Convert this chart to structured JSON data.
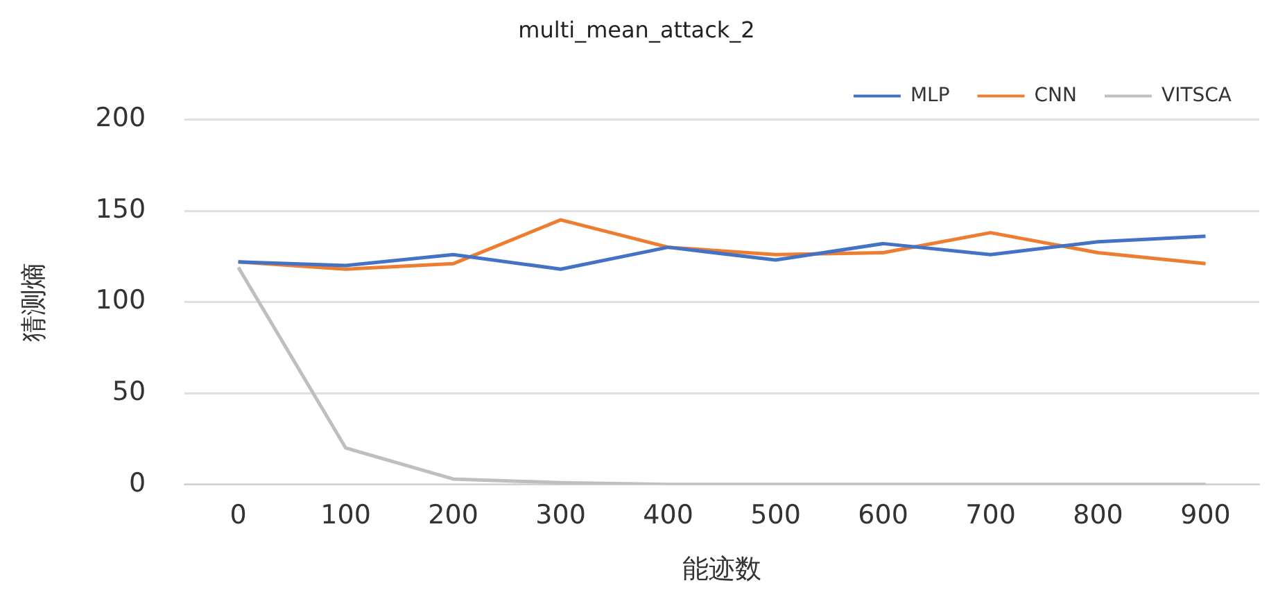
{
  "chart_data": {
    "type": "line",
    "title": "multi_mean_attack_2",
    "xlabel": "能迹数",
    "ylabel": "猜测熵",
    "categories": [
      "0",
      "100",
      "200",
      "300",
      "400",
      "500",
      "600",
      "700",
      "800",
      "900"
    ],
    "series": [
      {
        "name": "MLP",
        "color": "#4472c4",
        "values": [
          122,
          120,
          126,
          118,
          130,
          123,
          132,
          126,
          133,
          136
        ]
      },
      {
        "name": "CNN",
        "color": "#ed7d31",
        "values": [
          122,
          118,
          121,
          145,
          130,
          126,
          127,
          138,
          127,
          121
        ]
      },
      {
        "name": "VITSCA",
        "color": "#bfbfbf",
        "values": [
          119,
          20,
          3,
          1,
          0,
          0,
          0,
          0,
          0,
          0
        ]
      }
    ],
    "ylim": [
      0,
      200
    ],
    "yticks": [
      0,
      50,
      100,
      150,
      200
    ],
    "grid": "y",
    "legend": "top right",
    "marker": "none",
    "line_style": "solid"
  }
}
